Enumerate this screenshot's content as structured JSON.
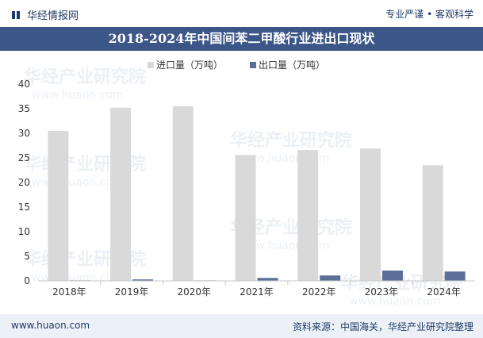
{
  "header": {
    "brand": "华经情报网",
    "slogan": "专业严谨 • 客观科学"
  },
  "footer": {
    "website": "www.huaon.com",
    "source": "资料来源：中国海关，华经产业研究院整理"
  },
  "watermark": {
    "name": "华经产业研究院",
    "url": "www.huaon.com"
  },
  "colors": {
    "import": "#d9d9d9",
    "export": "#5b6f99",
    "title_bg": "#3c5687"
  },
  "chart_data": {
    "type": "bar",
    "title": "2018-2024年中国间苯二甲酸行业进出口现状",
    "xlabel": "",
    "ylabel": "",
    "categories": [
      "2018年",
      "2019年",
      "2020年",
      "2021年",
      "2022年",
      "2023年",
      "2024年"
    ],
    "series": [
      {
        "name": "进口量（万吨）",
        "values": [
          30.5,
          35.2,
          35.5,
          25.6,
          26.6,
          26.9,
          23.5
        ]
      },
      {
        "name": "出口量（万吨）",
        "values": [
          0.1,
          0.3,
          0.1,
          0.6,
          1.1,
          2.1,
          1.9
        ]
      }
    ],
    "ylim": [
      0,
      40
    ],
    "yticks": [
      0,
      5,
      10,
      15,
      20,
      25,
      30,
      35,
      40
    ],
    "grid": false,
    "legend": "top-center"
  }
}
